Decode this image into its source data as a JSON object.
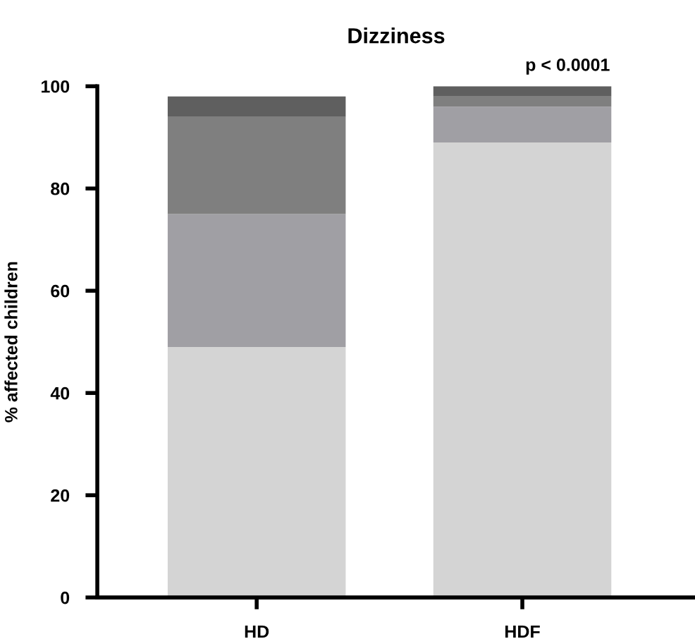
{
  "chart_data": {
    "type": "bar",
    "title": "Dizziness",
    "ylabel": "% affected children",
    "categories": [
      "HD",
      "HDF"
    ],
    "stacked": true,
    "series": [
      {
        "color": "#d4d4d4",
        "values": [
          49,
          89
        ]
      },
      {
        "color": "#a09fa4",
        "values": [
          26,
          7
        ]
      },
      {
        "color": "#7f7f7f",
        "values": [
          19,
          2
        ]
      },
      {
        "color": "#5f5f5f",
        "values": [
          4,
          2
        ]
      }
    ],
    "ylim": [
      0,
      100
    ],
    "yticks": [
      0,
      20,
      40,
      60,
      80,
      100
    ],
    "grid": false,
    "legend": false,
    "annotations": [
      {
        "text": "p < 0.0001",
        "x": "HDF",
        "y": 100
      }
    ]
  }
}
